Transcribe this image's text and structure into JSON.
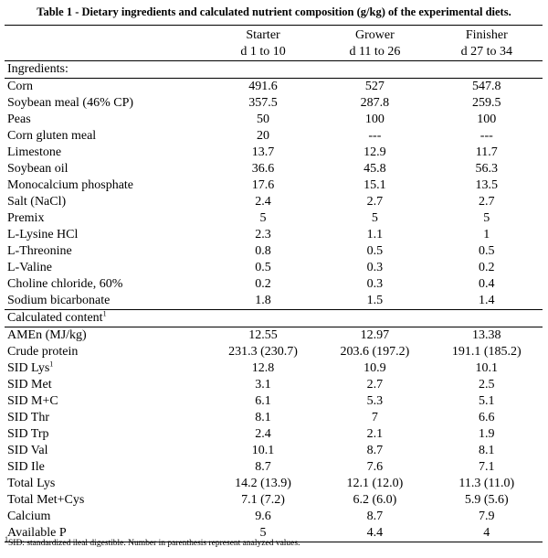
{
  "title": "Table 1 - Dietary ingredients and calculated nutrient composition (g/kg) of the experimental diets.",
  "columns": [
    {
      "name": "Starter",
      "period": "d 1 to 10"
    },
    {
      "name": "Grower",
      "period": "d 11 to 26"
    },
    {
      "name": "Finisher",
      "period": "d 27 to 34"
    }
  ],
  "sections": {
    "ingredients": "Ingredients:",
    "calculated": "Calculated content",
    "calculated_sup": "1"
  },
  "ingredients": [
    {
      "label": "Corn",
      "values": [
        "491.6",
        "527",
        "547.8"
      ]
    },
    {
      "label": "Soybean meal (46% CP)",
      "values": [
        "357.5",
        "287.8",
        "259.5"
      ]
    },
    {
      "label": "Peas",
      "values": [
        "50",
        "100",
        "100"
      ]
    },
    {
      "label": "Corn gluten meal",
      "values": [
        "20",
        "---",
        "---"
      ]
    },
    {
      "label": "Limestone",
      "values": [
        "13.7",
        "12.9",
        "11.7"
      ]
    },
    {
      "label": "Soybean oil",
      "values": [
        "36.6",
        "45.8",
        "56.3"
      ]
    },
    {
      "label": "Monocalcium phosphate",
      "values": [
        "17.6",
        "15.1",
        "13.5"
      ]
    },
    {
      "label": "Salt (NaCl)",
      "values": [
        "2.4",
        "2.7",
        "2.7"
      ]
    },
    {
      "label": "Premix",
      "values": [
        "5",
        "5",
        "5"
      ]
    },
    {
      "label": "L-Lysine HCl",
      "values": [
        "2.3",
        "1.1",
        "1"
      ]
    },
    {
      "label": "L-Threonine",
      "values": [
        "0.8",
        "0.5",
        "0.5"
      ]
    },
    {
      "label": "L-Valine",
      "values": [
        "0.5",
        "0.3",
        "0.2"
      ]
    },
    {
      "label": "Choline chloride, 60%",
      "values": [
        "0.2",
        "0.3",
        "0.4"
      ]
    },
    {
      "label": "Sodium bicarbonate",
      "values": [
        "1.8",
        "1.5",
        "1.4"
      ]
    }
  ],
  "calculated": [
    {
      "label": "AMEn (MJ/kg)",
      "values": [
        "12.55",
        "12.97",
        "13.38"
      ]
    },
    {
      "label": "Crude protein",
      "values": [
        "231.3 (230.7)",
        "203.6 (197.2)",
        "191.1 (185.2)"
      ]
    },
    {
      "label": "SID Lys",
      "sup": "1",
      "values": [
        "12.8",
        "10.9",
        "10.1"
      ]
    },
    {
      "label": "SID Met",
      "values": [
        "3.1",
        "2.7",
        "2.5"
      ]
    },
    {
      "label": "SID M+C",
      "values": [
        "6.1",
        "5.3",
        "5.1"
      ]
    },
    {
      "label": "SID Thr",
      "values": [
        "8.1",
        "7",
        "6.6"
      ]
    },
    {
      "label": "SID Trp",
      "values": [
        "2.4",
        "2.1",
        "1.9"
      ]
    },
    {
      "label": "SID Val",
      "values": [
        "10.1",
        "8.7",
        "8.1"
      ]
    },
    {
      "label": "SID Ile",
      "values": [
        "8.7",
        "7.6",
        "7.1"
      ]
    },
    {
      "label": "Total Lys",
      "values": [
        "14.2 (13.9)",
        "12.1 (12.0)",
        "11.3 (11.0)"
      ]
    },
    {
      "label": "Total Met+Cys",
      "values": [
        "7.1 (7.2)",
        "6.2 (6.0)",
        "5.9 (5.6)"
      ]
    },
    {
      "label": "Calcium",
      "values": [
        "9.6",
        "8.7",
        "7.9"
      ]
    },
    {
      "label": "Available P",
      "values": [
        "5",
        "4.4",
        "4"
      ]
    }
  ],
  "footnote": {
    "sup": "1",
    "text": "SID: standardized ileal digestible. Number in parenthesis represent analyzed values."
  }
}
